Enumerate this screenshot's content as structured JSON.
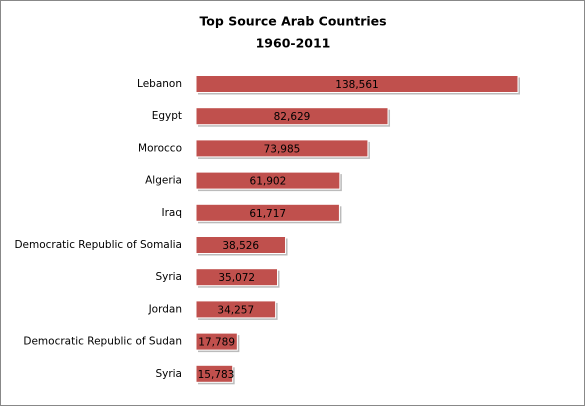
{
  "chart_data": {
    "type": "bar",
    "orientation": "horizontal",
    "title": "Top Source Arab Countries",
    "subtitle": "1960-2011",
    "categories": [
      "Lebanon",
      "Egypt",
      "Morocco",
      "Algeria",
      "Iraq",
      "Democratic Republic of Somalia",
      "Syria",
      "Jordan",
      "Democratic Republic of Sudan",
      "Syria"
    ],
    "values": [
      138561,
      82629,
      73985,
      61902,
      61717,
      38526,
      35072,
      34257,
      17789,
      15783
    ],
    "value_labels": [
      "138,561",
      "82,629",
      "73,985",
      "61,902",
      "61,717",
      "38,526",
      "35,072",
      "34,257",
      "17,789",
      "15,783"
    ],
    "color": "#c0504d"
  }
}
